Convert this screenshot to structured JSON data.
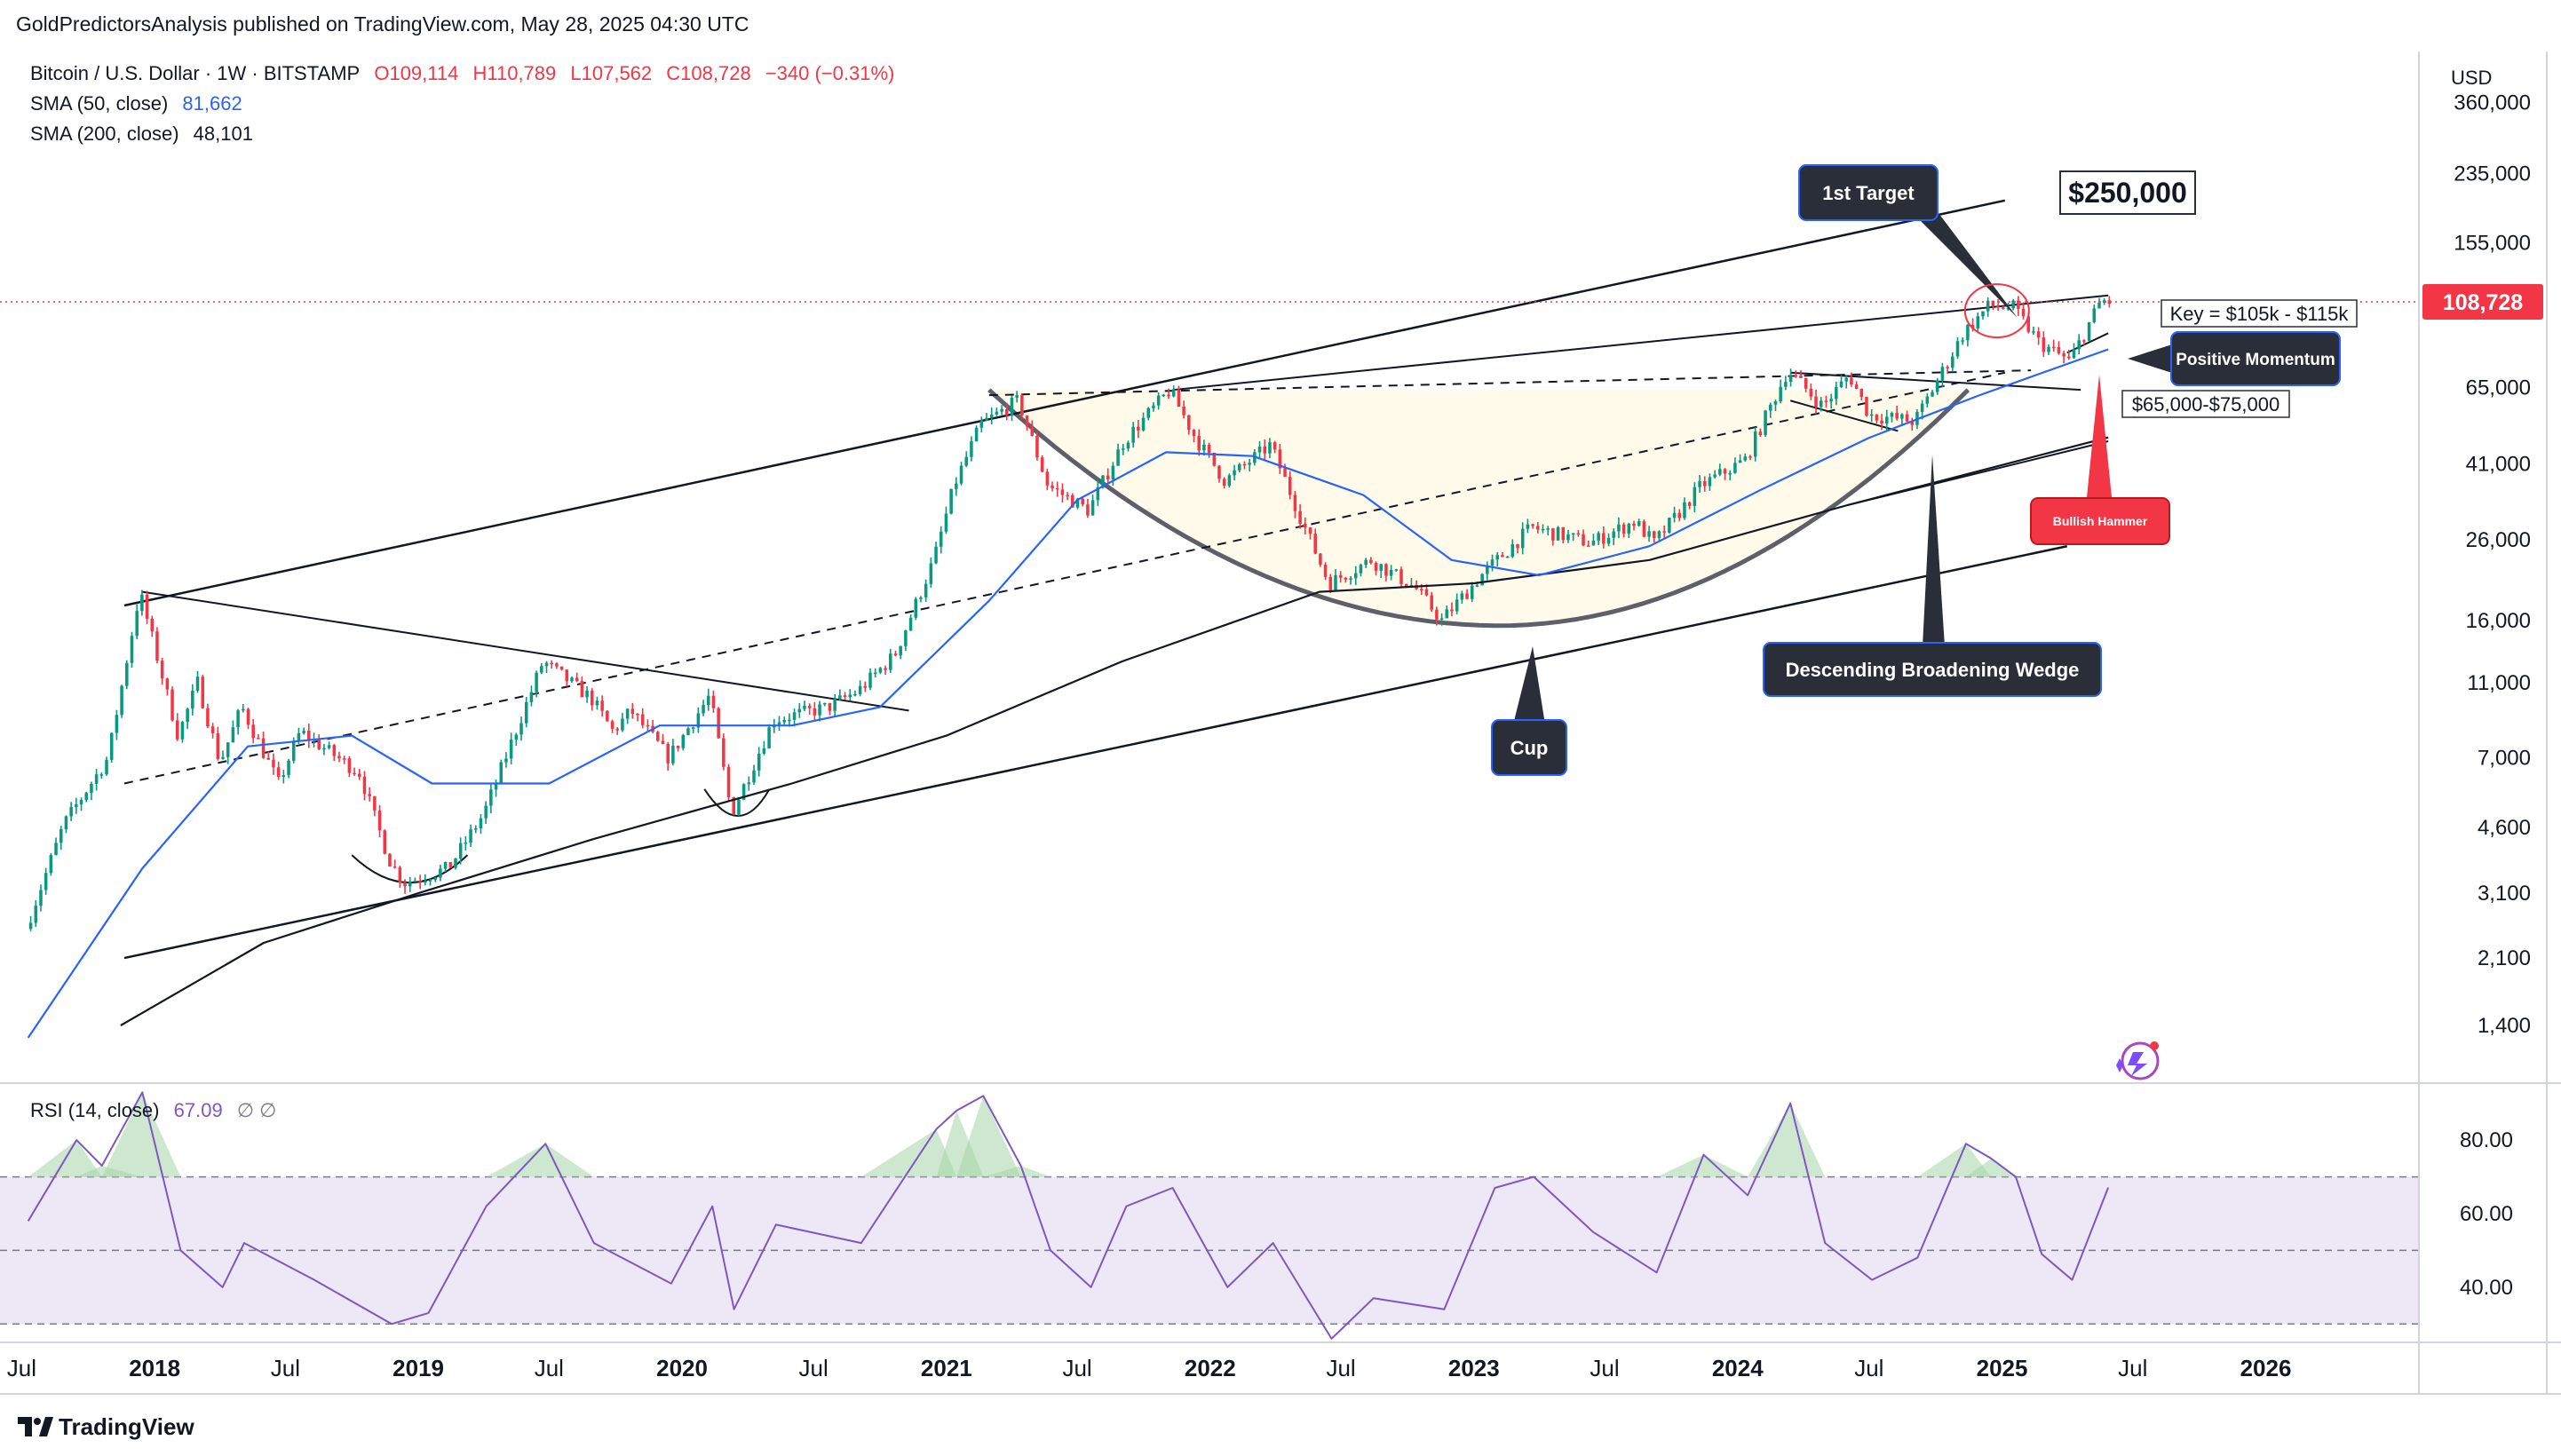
{
  "header": {
    "publisher_line": "GoldPredictorsAnalysis published on TradingView.com, May 28, 2025 04:30 UTC"
  },
  "legend": {
    "symbol": "Bitcoin / U.S. Dollar · 1W · BITSTAMP",
    "ohlc": {
      "o": "O109,114",
      "h": "H110,789",
      "l": "L107,562",
      "c": "C108,728",
      "chg": "−340 (−0.31%)"
    },
    "sma50_label": "SMA (50, close)",
    "sma50_value": "81,662",
    "sma200_label": "SMA (200, close)",
    "sma200_value": "48,101",
    "rsi_label": "RSI (14, close)",
    "rsi_value": "67.09",
    "rsi_extra": "∅  ∅"
  },
  "colors": {
    "up": "#089981",
    "down": "#f23645",
    "sma50": "#2962ff",
    "sma200": "#131722",
    "rsi": "#7e57c2",
    "rsi_band": "#ede7f6",
    "price_tag": "#f23645",
    "callout_bg": "#2a2e39",
    "callout_border": "#2962ff",
    "bullish_hammer": "#f23645"
  },
  "chart_data": [
    {
      "type": "candlestick",
      "title": "Bitcoin / U.S. Dollar · 1W · BITSTAMP",
      "y_scale": "log",
      "currency": "USD",
      "y_ticks": [
        1400,
        2100,
        3100,
        4600,
        7000,
        11000,
        16000,
        26000,
        41000,
        65000,
        155000,
        235000,
        360000
      ],
      "y_tick_labels": [
        "1,400",
        "2,100",
        "3,100",
        "4,600",
        "7,000",
        "11,000",
        "16,000",
        "26,000",
        "41,000",
        "65,000",
        "155,000",
        "235,000",
        "360,000"
      ],
      "x_tick_labels": [
        "Jul",
        "2018",
        "Jul",
        "2019",
        "Jul",
        "2020",
        "Jul",
        "2021",
        "Jul",
        "2022",
        "Jul",
        "2023",
        "Jul",
        "2024",
        "Jul",
        "2025",
        "Jul",
        "2026"
      ],
      "last_price": 108728,
      "last_price_label": "108,728",
      "price_path_approx": [
        {
          "d": "2017-07-10",
          "v": 2500
        },
        {
          "d": "2017-09-01",
          "v": 4700
        },
        {
          "d": "2017-11-01",
          "v": 7000
        },
        {
          "d": "2017-12-15",
          "v": 19000
        },
        {
          "d": "2018-02-06",
          "v": 8000
        },
        {
          "d": "2018-03-05",
          "v": 11000
        },
        {
          "d": "2018-04-05",
          "v": 6800
        },
        {
          "d": "2018-05-05",
          "v": 9500
        },
        {
          "d": "2018-06-25",
          "v": 6000
        },
        {
          "d": "2018-07-25",
          "v": 8200
        },
        {
          "d": "2018-10-15",
          "v": 6400
        },
        {
          "d": "2018-11-25",
          "v": 3800
        },
        {
          "d": "2018-12-15",
          "v": 3300
        },
        {
          "d": "2019-02-15",
          "v": 3600
        },
        {
          "d": "2019-04-05",
          "v": 5000
        },
        {
          "d": "2019-06-26",
          "v": 12500
        },
        {
          "d": "2019-09-01",
          "v": 10000
        },
        {
          "d": "2019-10-01",
          "v": 8200
        },
        {
          "d": "2019-10-26",
          "v": 9300
        },
        {
          "d": "2019-12-17",
          "v": 7000
        },
        {
          "d": "2020-02-12",
          "v": 10200
        },
        {
          "d": "2020-03-13",
          "v": 5000
        },
        {
          "d": "2020-05-10",
          "v": 8800
        },
        {
          "d": "2020-07-25",
          "v": 9500
        },
        {
          "d": "2020-09-05",
          "v": 10500
        },
        {
          "d": "2020-10-25",
          "v": 13000
        },
        {
          "d": "2020-12-18",
          "v": 23000
        },
        {
          "d": "2021-01-15",
          "v": 36000
        },
        {
          "d": "2021-02-21",
          "v": 52000
        },
        {
          "d": "2021-04-14",
          "v": 60000
        },
        {
          "d": "2021-05-25",
          "v": 36000
        },
        {
          "d": "2021-07-20",
          "v": 31000
        },
        {
          "d": "2021-09-07",
          "v": 47000
        },
        {
          "d": "2021-11-10",
          "v": 64000
        },
        {
          "d": "2021-12-15",
          "v": 48000
        },
        {
          "d": "2022-01-25",
          "v": 37000
        },
        {
          "d": "2022-03-29",
          "v": 46000
        },
        {
          "d": "2022-05-12",
          "v": 29000
        },
        {
          "d": "2022-06-18",
          "v": 20000
        },
        {
          "d": "2022-08-15",
          "v": 23000
        },
        {
          "d": "2022-10-15",
          "v": 19500
        },
        {
          "d": "2022-11-21",
          "v": 16000
        },
        {
          "d": "2023-01-15",
          "v": 21000
        },
        {
          "d": "2023-03-25",
          "v": 28000
        },
        {
          "d": "2023-06-15",
          "v": 25500
        },
        {
          "d": "2023-08-15",
          "v": 29000
        },
        {
          "d": "2023-09-11",
          "v": 25500
        },
        {
          "d": "2023-11-15",
          "v": 36000
        },
        {
          "d": "2024-01-15",
          "v": 42000
        },
        {
          "d": "2024-03-14",
          "v": 72000
        },
        {
          "d": "2024-05-01",
          "v": 58000
        },
        {
          "d": "2024-06-07",
          "v": 70000
        },
        {
          "d": "2024-07-05",
          "v": 55000
        },
        {
          "d": "2024-09-06",
          "v": 53000
        },
        {
          "d": "2024-11-12",
          "v": 90000
        },
        {
          "d": "2024-12-17",
          "v": 106000
        },
        {
          "d": "2025-01-20",
          "v": 105000
        },
        {
          "d": "2025-02-25",
          "v": 85000
        },
        {
          "d": "2025-04-08",
          "v": 76000
        },
        {
          "d": "2025-05-22",
          "v": 110000
        },
        {
          "d": "2025-05-28",
          "v": 108728
        }
      ],
      "sma50_approx": [
        {
          "d": "2017-07-10",
          "v": 1300
        },
        {
          "d": "2017-12-15",
          "v": 3600
        },
        {
          "d": "2018-05-10",
          "v": 7500
        },
        {
          "d": "2018-10-01",
          "v": 8000
        },
        {
          "d": "2019-01-20",
          "v": 6000
        },
        {
          "d": "2019-07-01",
          "v": 6000
        },
        {
          "d": "2019-12-01",
          "v": 8500
        },
        {
          "d": "2020-06-01",
          "v": 8500
        },
        {
          "d": "2020-10-01",
          "v": 9500
        },
        {
          "d": "2021-03-01",
          "v": 18000
        },
        {
          "d": "2021-07-01",
          "v": 33000
        },
        {
          "d": "2021-11-01",
          "v": 44000
        },
        {
          "d": "2022-03-01",
          "v": 43000
        },
        {
          "d": "2022-08-01",
          "v": 34000
        },
        {
          "d": "2022-12-01",
          "v": 23000
        },
        {
          "d": "2023-04-01",
          "v": 21000
        },
        {
          "d": "2023-09-01",
          "v": 25000
        },
        {
          "d": "2024-02-01",
          "v": 35000
        },
        {
          "d": "2024-07-01",
          "v": 48000
        },
        {
          "d": "2024-12-01",
          "v": 62000
        },
        {
          "d": "2025-05-28",
          "v": 81662
        }
      ],
      "sma200_approx": [
        {
          "d": "2017-11-15",
          "v": 1400
        },
        {
          "d": "2018-06-01",
          "v": 2300
        },
        {
          "d": "2019-01-01",
          "v": 3100
        },
        {
          "d": "2019-09-01",
          "v": 4300
        },
        {
          "d": "2020-06-01",
          "v": 6000
        },
        {
          "d": "2021-01-01",
          "v": 8000
        },
        {
          "d": "2021-09-01",
          "v": 12500
        },
        {
          "d": "2022-06-01",
          "v": 19000
        },
        {
          "d": "2023-01-01",
          "v": 20000
        },
        {
          "d": "2023-09-01",
          "v": 23000
        },
        {
          "d": "2024-06-01",
          "v": 32000
        },
        {
          "d": "2025-05-28",
          "v": 48101
        }
      ],
      "annotations": {
        "first_target": "1st Target",
        "target_price": "$250,000",
        "key_zone": "Key = $105k - $115k",
        "positive_momentum": "Positive Momentum",
        "support_zone": "$65,000-$75,000",
        "bullish_hammer": "Bullish Hammer",
        "wedge": "Descending Broadening Wedge",
        "cup": "Cup"
      },
      "currency_label": "USD"
    },
    {
      "type": "line",
      "title": "RSI (14, close)",
      "y_range": [
        25,
        95
      ],
      "band": [
        30,
        70
      ],
      "midline": 50,
      "y_ticks": [
        40,
        60,
        80
      ],
      "y_tick_labels": [
        "40.00",
        "60.00",
        "80.00"
      ],
      "last_value": 67.09,
      "values_approx": [
        {
          "d": "2017-07-10",
          "v": 58
        },
        {
          "d": "2017-09-15",
          "v": 80
        },
        {
          "d": "2017-10-20",
          "v": 73
        },
        {
          "d": "2017-12-15",
          "v": 93
        },
        {
          "d": "2018-02-06",
          "v": 50
        },
        {
          "d": "2018-04-05",
          "v": 40
        },
        {
          "d": "2018-05-05",
          "v": 52
        },
        {
          "d": "2018-08-10",
          "v": 42
        },
        {
          "d": "2018-11-25",
          "v": 30
        },
        {
          "d": "2019-01-15",
          "v": 33
        },
        {
          "d": "2019-04-05",
          "v": 62
        },
        {
          "d": "2019-06-26",
          "v": 79
        },
        {
          "d": "2019-09-01",
          "v": 52
        },
        {
          "d": "2019-12-17",
          "v": 41
        },
        {
          "d": "2020-02-12",
          "v": 62
        },
        {
          "d": "2020-03-13",
          "v": 34
        },
        {
          "d": "2020-05-10",
          "v": 57
        },
        {
          "d": "2020-09-05",
          "v": 52
        },
        {
          "d": "2020-12-18",
          "v": 83
        },
        {
          "d": "2021-01-15",
          "v": 88
        },
        {
          "d": "2021-02-21",
          "v": 92
        },
        {
          "d": "2021-04-14",
          "v": 73
        },
        {
          "d": "2021-05-25",
          "v": 50
        },
        {
          "d": "2021-07-20",
          "v": 40
        },
        {
          "d": "2021-09-07",
          "v": 62
        },
        {
          "d": "2021-11-10",
          "v": 67
        },
        {
          "d": "2022-01-25",
          "v": 40
        },
        {
          "d": "2022-03-29",
          "v": 52
        },
        {
          "d": "2022-06-18",
          "v": 26
        },
        {
          "d": "2022-08-15",
          "v": 37
        },
        {
          "d": "2022-11-21",
          "v": 34
        },
        {
          "d": "2023-01-30",
          "v": 67
        },
        {
          "d": "2023-03-25",
          "v": 70
        },
        {
          "d": "2023-06-15",
          "v": 55
        },
        {
          "d": "2023-09-11",
          "v": 44
        },
        {
          "d": "2023-11-15",
          "v": 76
        },
        {
          "d": "2024-01-15",
          "v": 65
        },
        {
          "d": "2024-03-14",
          "v": 90
        },
        {
          "d": "2024-05-01",
          "v": 52
        },
        {
          "d": "2024-07-05",
          "v": 42
        },
        {
          "d": "2024-09-06",
          "v": 48
        },
        {
          "d": "2024-11-12",
          "v": 79
        },
        {
          "d": "2024-12-17",
          "v": 75
        },
        {
          "d": "2025-01-20",
          "v": 70
        },
        {
          "d": "2025-02-25",
          "v": 49
        },
        {
          "d": "2025-04-08",
          "v": 42
        },
        {
          "d": "2025-05-28",
          "v": 67.09
        }
      ]
    }
  ],
  "footer": {
    "brand": "TradingView"
  }
}
